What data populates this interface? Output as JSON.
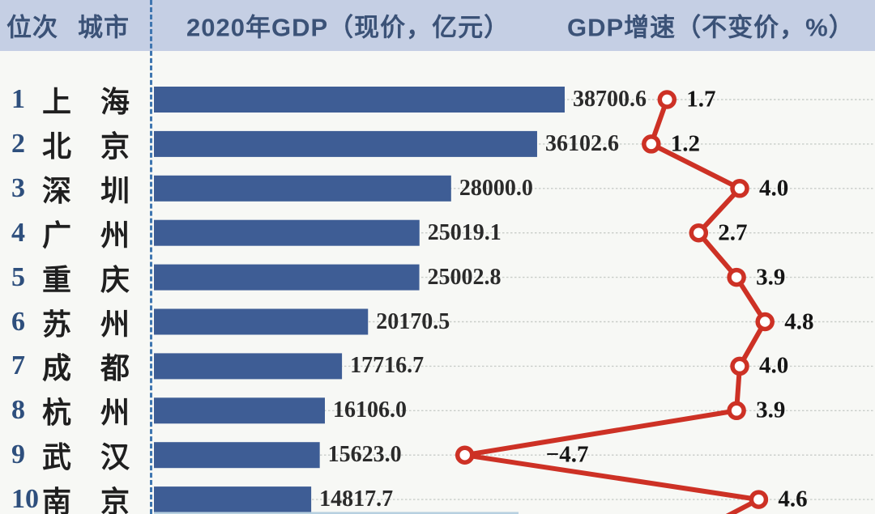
{
  "header": {
    "rank_label": "位次",
    "city_label": "城市",
    "gdp_label": "2020年GDP（现价，亿元）",
    "growth_label": "GDP增速（不变价，%）"
  },
  "chart_data": {
    "type": "bar",
    "note": "horizontal bar chart of 2020 GDP (current prices, 100M yuan) combined with a line chart of GDP growth rate (constant prices, %), top 10 Chinese cities",
    "categories": [
      "上海",
      "北京",
      "深圳",
      "广州",
      "重庆",
      "苏州",
      "成都",
      "杭州",
      "武汉",
      "南京"
    ],
    "ranks": [
      1,
      2,
      3,
      4,
      5,
      6,
      7,
      8,
      9,
      10
    ],
    "series": [
      {
        "name": "2020年GDP（现价，亿元）",
        "values": [
          38700.6,
          36102.6,
          28000.0,
          25019.1,
          25002.8,
          20170.5,
          17716.7,
          16106.0,
          15623.0,
          14817.7
        ]
      },
      {
        "name": "GDP增速（不变价，%）",
        "values": [
          1.7,
          1.2,
          4.0,
          2.7,
          3.9,
          4.8,
          4.0,
          3.9,
          -4.7,
          4.6
        ]
      }
    ],
    "gdp_axis_range": [
      0,
      38700.6
    ],
    "grid": true,
    "legend": "none"
  },
  "colors": {
    "background": "#f7f8f5",
    "header_bg": "#c5cfe4",
    "header_text": "#3b5277",
    "bar": "#3e5d95",
    "rank_text": "#2e4f7d",
    "city_text": "#1f1f1f",
    "value_text": "#2b2b2b",
    "growth_line": "#cd3125",
    "marker_fill": "#ffffff",
    "gridline": "#c9cdc9",
    "axis_dash": "#3f76b0",
    "bottom_sliver": "#b7d0e0"
  }
}
